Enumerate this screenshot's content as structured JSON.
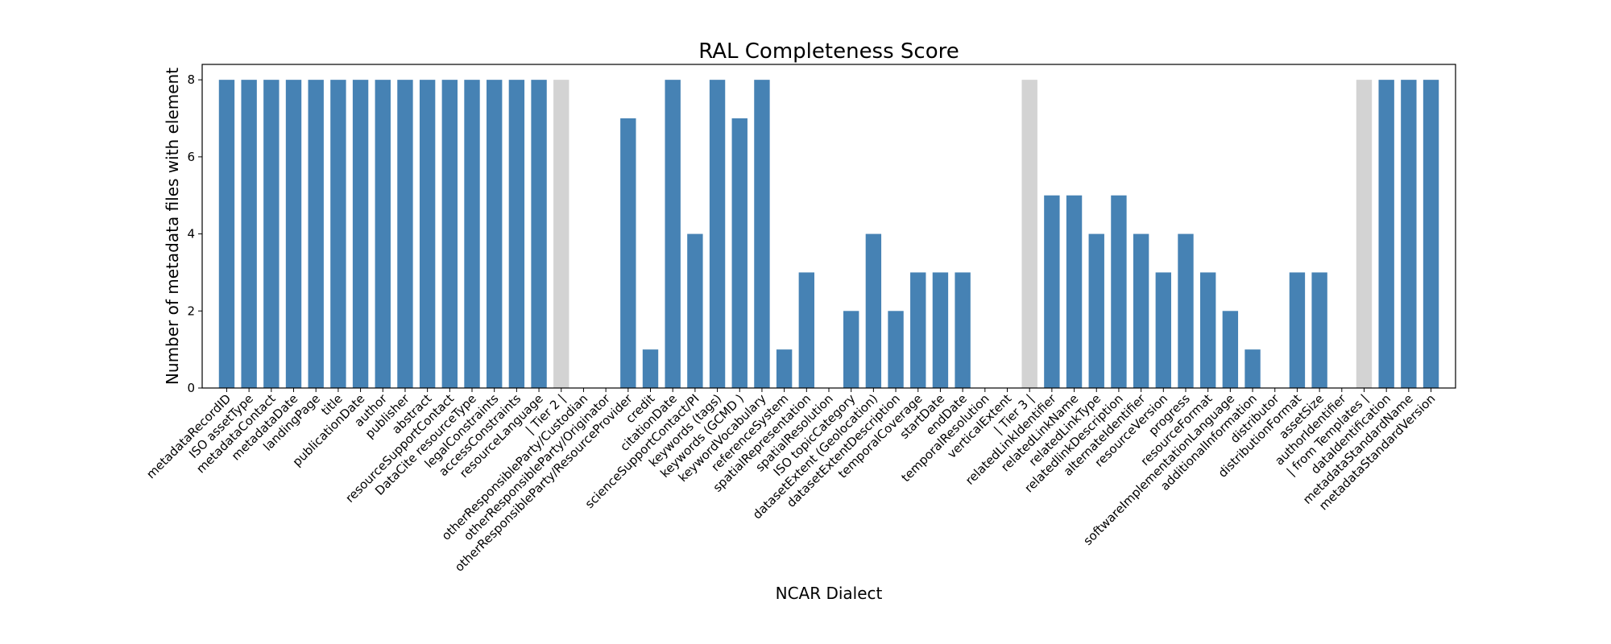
{
  "chart_data": {
    "type": "bar",
    "title": "RAL Completeness Score",
    "xlabel": "NCAR Dialect",
    "ylabel": "Number of metadata files with element",
    "ylim": [
      0,
      8.4
    ],
    "yticks": [
      0,
      2,
      4,
      6,
      8
    ],
    "grid": false,
    "colors": {
      "bar": "#4682b4",
      "separator": "#d3d3d3"
    },
    "categories": [
      "metadataRecordID",
      "ISO assetType",
      "metadataContact",
      "metadataDate",
      "landingPage",
      "title",
      "publicationDate",
      "author",
      "publisher",
      "abstract",
      "resourceSupportContact",
      "DataCite resourceType",
      "legalConstraints",
      "accessConstraints",
      "resourceLanguage",
      "| Tier 2 |",
      "otherResponsibleParty/Custodian",
      "otherResponsibleParty/Originator",
      "otherResponsibleParty/ResourceProvider",
      "credit",
      "citationDate",
      "scienceSupportContact/PI",
      "keywords (tags)",
      "keywords (GCMD )",
      "keywordVocabulary",
      "referenceSystem",
      "spatialRepresentation",
      "spatialResolution",
      "ISO topicCategory",
      "datasetExtent (Geolocation)",
      "datasetExtentDescription",
      "temporalCoverage",
      "startDate",
      "endDate",
      "temporalResolution",
      "verticalExtent",
      "| Tier 3 |",
      "relatedLinkIdentifier",
      "relatedLinkName",
      "relatedLinkType",
      "relatedlinkDescription",
      "alternateIdentifier",
      "resourceVersion",
      "progress",
      "resourceFormat",
      "softwareImplementationLanguage",
      "additionalInformation",
      "distributor",
      "distributionFormat",
      "assetSize",
      "authorIdentifier",
      "| from Templates |",
      "dataIdentification",
      "metadataStandardName",
      "metadataStandardVersion"
    ],
    "values": [
      8,
      8,
      8,
      8,
      8,
      8,
      8,
      8,
      8,
      8,
      8,
      8,
      8,
      8,
      8,
      8,
      0,
      0,
      7,
      1,
      8,
      4,
      8,
      7,
      8,
      1,
      3,
      0,
      2,
      4,
      2,
      3,
      3,
      3,
      0,
      0,
      8,
      5,
      5,
      4,
      5,
      4,
      3,
      4,
      3,
      2,
      1,
      0,
      3,
      3,
      0,
      8,
      8,
      8,
      8
    ],
    "separator_categories": [
      "| Tier 2 |",
      "| Tier 3 |",
      "| from Templates |"
    ]
  }
}
